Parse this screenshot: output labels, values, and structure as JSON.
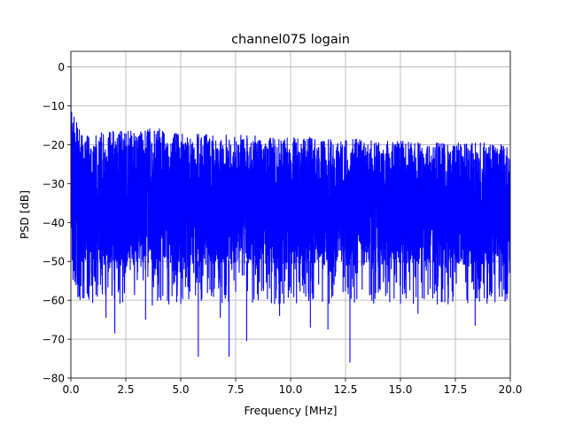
{
  "chart_data": {
    "type": "line",
    "title": "channel075 logain",
    "xlabel": "Frequency [MHz]",
    "ylabel": "PSD [dB]",
    "xlim": [
      0,
      20
    ],
    "ylim": [
      -80,
      4
    ],
    "x_ticks": [
      "0.0",
      "2.5",
      "5.0",
      "7.5",
      "10.0",
      "12.5",
      "15.0",
      "17.5",
      "20.0"
    ],
    "y_ticks": [
      "0",
      "−10",
      "−20",
      "−30",
      "−40",
      "−50",
      "−60",
      "−70",
      "−80"
    ],
    "grid": true,
    "series": [
      {
        "color": "#0000ff",
        "description": "dense noisy power spectral density",
        "x": [
          0.0,
          0.05,
          0.1,
          0.2,
          0.3,
          0.5,
          1,
          2,
          3,
          4,
          5,
          6,
          7,
          8,
          9,
          10,
          11,
          12,
          13,
          14,
          15,
          16,
          17,
          18,
          19,
          20
        ],
        "upper_envelope": [
          0,
          -8,
          -12,
          -13,
          -15,
          -16,
          -16.5,
          -16.5,
          -16.5,
          -15.5,
          -17,
          -17,
          -17.5,
          -17.5,
          -18,
          -18,
          -18,
          -18.5,
          -18.5,
          -19,
          -19,
          -19.5,
          -19.5,
          -19.5,
          -19.5,
          -20
        ],
        "typical_upper": [
          -2,
          -12,
          -15,
          -17,
          -18,
          -19,
          -19,
          -19,
          -19,
          -19,
          -19.5,
          -20,
          -20,
          -20.5,
          -20.5,
          -20.5,
          -21,
          -21,
          -21,
          -21.5,
          -21.5,
          -21.5,
          -21.5,
          -22,
          -22,
          -22
        ],
        "typical_lower": [
          -40,
          -44,
          -48,
          -50,
          -50,
          -51,
          -51,
          -51,
          -51,
          -51,
          -51,
          -51,
          -51,
          -51,
          -51,
          -51,
          -51,
          -51,
          -51,
          -51,
          -51,
          -51,
          -51,
          -51,
          -51,
          -51
        ],
        "lower_envelope": [
          -40,
          -50,
          -56,
          -60,
          -62,
          -61,
          -61,
          -62,
          -62,
          -61,
          -61,
          -61,
          -61,
          -61,
          -61,
          -61,
          -61,
          -61,
          -61,
          -61,
          -61,
          -61,
          -61,
          -61,
          -61,
          -61
        ],
        "deep_dips": [
          {
            "x": 1.6,
            "y": -64.5
          },
          {
            "x": 2.0,
            "y": -68.5
          },
          {
            "x": 3.4,
            "y": -65
          },
          {
            "x": 5.8,
            "y": -74.5
          },
          {
            "x": 6.8,
            "y": -64.5
          },
          {
            "x": 7.2,
            "y": -74.5
          },
          {
            "x": 8.0,
            "y": -70.5
          },
          {
            "x": 9.5,
            "y": -64
          },
          {
            "x": 10.9,
            "y": -67
          },
          {
            "x": 11.7,
            "y": -67.5
          },
          {
            "x": 12.7,
            "y": -76
          },
          {
            "x": 15.8,
            "y": -63.5
          },
          {
            "x": 18.4,
            "y": -66.5
          }
        ]
      }
    ]
  }
}
